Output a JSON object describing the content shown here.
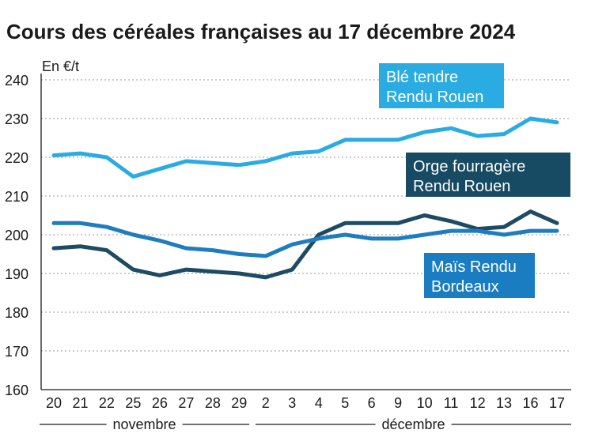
{
  "chart_data": {
    "type": "line",
    "title": "Cours des céréales françaises au 17 décembre 2024",
    "ylabel": "En €/t",
    "xlabel": "",
    "ylim": [
      160,
      240
    ],
    "yticks": [
      160,
      170,
      180,
      190,
      200,
      210,
      220,
      230,
      240
    ],
    "grid": true,
    "categories": [
      "20",
      "21",
      "22",
      "25",
      "26",
      "27",
      "28",
      "29",
      "2",
      "3",
      "4",
      "5",
      "6",
      "9",
      "10",
      "11",
      "12",
      "13",
      "16",
      "17"
    ],
    "months": [
      {
        "label": "novembre",
        "from": 0,
        "to": 7
      },
      {
        "label": "décembre",
        "from": 8,
        "to": 19
      }
    ],
    "series": [
      {
        "name": "Blé tendre Rendu Rouen",
        "label_lines": [
          "Blé tendre",
          "Rendu Rouen"
        ],
        "color": "#2aace2",
        "label_bg": "#2aace2",
        "values": [
          220.5,
          221,
          220,
          215,
          217,
          219,
          218.5,
          218,
          219,
          221,
          221.5,
          224.5,
          224.5,
          224.5,
          226.5,
          227.5,
          225.5,
          226,
          230,
          229
        ]
      },
      {
        "name": "Orge fourragère Rendu Rouen",
        "label_lines": [
          "Orge fourragère",
          "Rendu Rouen"
        ],
        "color": "#1d4b63",
        "label_bg": "#174a63",
        "values": [
          196.5,
          197,
          196,
          191,
          189.5,
          191,
          190.5,
          190,
          189,
          191,
          200,
          203,
          203,
          203,
          205,
          203.5,
          201.5,
          202,
          206,
          203
        ]
      },
      {
        "name": "Maïs Rendu Bordeaux",
        "label_lines": [
          "Maïs Rendu",
          "Bordeaux"
        ],
        "color": "#1f7dbf",
        "label_bg": "#1a7cc1",
        "values": [
          203,
          203,
          202,
          200,
          198.5,
          196.5,
          196,
          195,
          194.5,
          197.5,
          199,
          200,
          199,
          199,
          200,
          201,
          201,
          200,
          201,
          201
        ]
      }
    ]
  }
}
